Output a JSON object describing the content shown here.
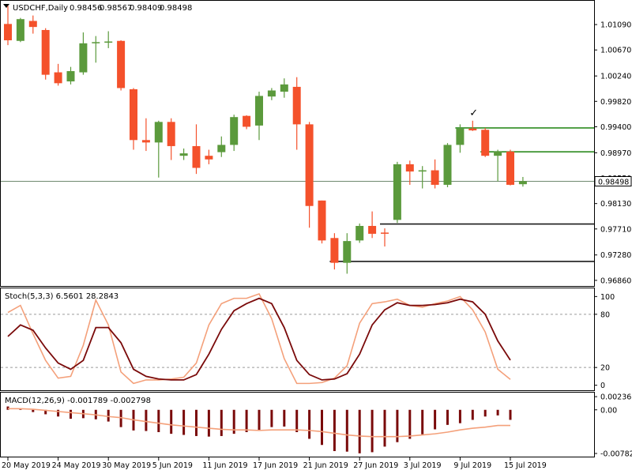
{
  "chart_data": [
    {
      "type": "candlestick",
      "title": "USDCHF,Daily",
      "symbol": "USDCHF",
      "timeframe": "Daily",
      "ohlc_header": [
        "0.98456",
        "0.98567",
        "0.98409",
        "0.98498"
      ],
      "current_price": 0.98498,
      "current_price_label": "0.98498",
      "y_ticks": [
        "1.01090",
        "1.00670",
        "1.00240",
        "0.99820",
        "0.99400",
        "0.98970",
        "0.98550",
        "0.98130",
        "0.97710",
        "0.97280",
        "0.96860"
      ],
      "ylim": [
        0.9678,
        1.0147
      ],
      "x_tick_labels": [
        {
          "label": "20 May 2019",
          "index": 0
        },
        {
          "label": "24 May 2019",
          "index": 4
        },
        {
          "label": "30 May 2019",
          "index": 8
        },
        {
          "label": "5 Jun 2019",
          "index": 12
        },
        {
          "label": "11 Jun 2019",
          "index": 16
        },
        {
          "label": "17 Jun 2019",
          "index": 20
        },
        {
          "label": "21 Jun 2019",
          "index": 24
        },
        {
          "label": "27 Jun 2019",
          "index": 28
        },
        {
          "label": "3 Jul 2019",
          "index": 32
        },
        {
          "label": "9 Jul 2019",
          "index": 36
        },
        {
          "label": "15 Jul 2019",
          "index": 40
        }
      ],
      "candles": [
        {
          "o": 1.011,
          "h": 1.014,
          "l": 1.0075,
          "c": 1.0083
        },
        {
          "o": 1.0082,
          "h": 1.012,
          "l": 1.008,
          "c": 1.0118
        },
        {
          "o": 1.0115,
          "h": 1.0124,
          "l": 1.0094,
          "c": 1.0105
        },
        {
          "o": 1.01,
          "h": 1.0103,
          "l": 1.0018,
          "c": 1.0026
        },
        {
          "o": 1.003,
          "h": 1.0044,
          "l": 1.0008,
          "c": 1.0012
        },
        {
          "o": 1.0015,
          "h": 1.0039,
          "l": 1.001,
          "c": 1.0032
        },
        {
          "o": 1.003,
          "h": 1.0096,
          "l": 1.0026,
          "c": 1.0078
        },
        {
          "o": 1.0078,
          "h": 1.009,
          "l": 1.0046,
          "c": 1.008
        },
        {
          "o": 1.008,
          "h": 1.0098,
          "l": 1.007,
          "c": 1.0081
        },
        {
          "o": 1.0082,
          "h": 1.0083,
          "l": 1.0,
          "c": 1.0004
        },
        {
          "o": 1.0002,
          "h": 1.0004,
          "l": 0.9902,
          "c": 0.9918
        },
        {
          "o": 0.9918,
          "h": 0.9954,
          "l": 0.99,
          "c": 0.9914
        },
        {
          "o": 0.9914,
          "h": 0.995,
          "l": 0.9856,
          "c": 0.9948
        },
        {
          "o": 0.9948,
          "h": 0.9954,
          "l": 0.9885,
          "c": 0.9908
        },
        {
          "o": 0.9892,
          "h": 0.9904,
          "l": 0.9885,
          "c": 0.9896
        },
        {
          "o": 0.9908,
          "h": 0.9944,
          "l": 0.9862,
          "c": 0.9872
        },
        {
          "o": 0.9892,
          "h": 0.9902,
          "l": 0.9878,
          "c": 0.9886
        },
        {
          "o": 0.9898,
          "h": 0.9924,
          "l": 0.989,
          "c": 0.991
        },
        {
          "o": 0.991,
          "h": 0.996,
          "l": 0.99,
          "c": 0.9956
        },
        {
          "o": 0.9958,
          "h": 0.9959,
          "l": 0.9936,
          "c": 0.994
        },
        {
          "o": 0.9942,
          "h": 0.9998,
          "l": 0.9918,
          "c": 0.9991
        },
        {
          "o": 0.999,
          "h": 1.0004,
          "l": 0.9984,
          "c": 1.0
        },
        {
          "o": 0.9998,
          "h": 1.002,
          "l": 0.9988,
          "c": 1.001
        },
        {
          "o": 1.0006,
          "h": 1.0022,
          "l": 0.9902,
          "c": 0.9944
        },
        {
          "o": 0.9944,
          "h": 0.9948,
          "l": 0.9773,
          "c": 0.9809
        },
        {
          "o": 0.9818,
          "h": 0.9818,
          "l": 0.9747,
          "c": 0.9752
        },
        {
          "o": 0.9756,
          "h": 0.9764,
          "l": 0.9704,
          "c": 0.9715
        },
        {
          "o": 0.9715,
          "h": 0.9764,
          "l": 0.9697,
          "c": 0.9751
        },
        {
          "o": 0.9752,
          "h": 0.978,
          "l": 0.9748,
          "c": 0.9776
        },
        {
          "o": 0.9776,
          "h": 0.98,
          "l": 0.9756,
          "c": 0.9763
        },
        {
          "o": 0.9765,
          "h": 0.9772,
          "l": 0.9742,
          "c": 0.9764
        },
        {
          "o": 0.9786,
          "h": 0.9882,
          "l": 0.9781,
          "c": 0.9878
        },
        {
          "o": 0.9878,
          "h": 0.9884,
          "l": 0.9844,
          "c": 0.9866
        },
        {
          "o": 0.9866,
          "h": 0.9875,
          "l": 0.9838,
          "c": 0.9868
        },
        {
          "o": 0.9868,
          "h": 0.9886,
          "l": 0.9838,
          "c": 0.9844
        },
        {
          "o": 0.9844,
          "h": 0.9913,
          "l": 0.984,
          "c": 0.991
        },
        {
          "o": 0.991,
          "h": 0.9944,
          "l": 0.9897,
          "c": 0.9937
        },
        {
          "o": 0.9937,
          "h": 0.995,
          "l": 0.9933,
          "c": 0.9934
        },
        {
          "o": 0.9935,
          "h": 0.9938,
          "l": 0.989,
          "c": 0.9892
        },
        {
          "o": 0.9892,
          "h": 0.9902,
          "l": 0.985,
          "c": 0.9899
        },
        {
          "o": 0.9899,
          "h": 0.9902,
          "l": 0.9843,
          "c": 0.9844
        },
        {
          "o": 0.9845,
          "h": 0.9857,
          "l": 0.9841,
          "c": 0.985
        }
      ],
      "horizontal_levels": [
        {
          "value": 0.99381,
          "color": "#2e8b20",
          "from_index": 36
        },
        {
          "value": 0.98985,
          "color": "#2e8b20",
          "from_index": 38
        },
        {
          "value": 0.97792,
          "color": "#1a1a1a",
          "from_index": 30
        },
        {
          "value": 0.97173,
          "color": "#1a1a1a",
          "from_index": 26
        }
      ],
      "annotations": [
        {
          "text": "✓",
          "index": 37,
          "price": 0.99575
        }
      ],
      "colors": {
        "bull": "#5b9a3c",
        "bear": "#f4512b",
        "current_line": "#6f8a6f"
      }
    },
    {
      "type": "line",
      "title": "Stoch(5,3,3) 6.5601 28.2843",
      "y_ticks": [
        "100",
        "80",
        "20",
        "0"
      ],
      "ylim": [
        -3,
        103
      ],
      "levels": [
        80,
        20
      ],
      "series": [
        {
          "color": "#f4a07a",
          "values": [
            82,
            90,
            58,
            28,
            8,
            10,
            45,
            96,
            68,
            15,
            2,
            6,
            6,
            7,
            9,
            25,
            68,
            92,
            98,
            98,
            103,
            75,
            30,
            2,
            2,
            3,
            8,
            22,
            70,
            92,
            94,
            97,
            90,
            88,
            92,
            95,
            100,
            85,
            60,
            18,
            6.56
          ]
        },
        {
          "color": "#7a0a0a",
          "values": [
            55,
            68,
            62,
            42,
            25,
            18,
            28,
            65,
            65,
            48,
            18,
            10,
            7,
            6,
            6,
            12,
            35,
            63,
            84,
            92,
            98,
            92,
            65,
            28,
            12,
            6,
            7,
            13,
            35,
            68,
            85,
            93,
            90,
            90,
            91,
            93,
            97,
            94,
            80,
            50,
            28.28
          ]
        }
      ]
    },
    {
      "type": "bar",
      "title": "MACD(12,26,9) -0.001789 -0.002798",
      "y_ticks": [
        "0.00236",
        "0.00",
        "-0.007828"
      ],
      "ylim": [
        -0.00825,
        0.0028
      ],
      "histogram": [
        0.0006,
        0.0002,
        -0.0004,
        -0.0008,
        -0.0012,
        -0.0016,
        -0.0015,
        -0.0017,
        -0.0021,
        -0.0031,
        -0.0037,
        -0.0038,
        -0.004,
        -0.0043,
        -0.0045,
        -0.0047,
        -0.0048,
        -0.0047,
        -0.0043,
        -0.004,
        -0.0036,
        -0.0031,
        -0.003,
        -0.004,
        -0.0052,
        -0.0063,
        -0.0074,
        -0.0075,
        -0.0078,
        -0.0076,
        -0.0066,
        -0.0058,
        -0.0052,
        -0.0044,
        -0.0035,
        -0.0027,
        -0.0024,
        -0.0018,
        -0.0012,
        -0.001,
        -0.0018
      ],
      "signal": [
        0.0002,
        0.0002,
        0.0001,
        -0.0001,
        -0.0003,
        -0.0005,
        -0.0007,
        -0.0009,
        -0.0012,
        -0.0014,
        -0.0018,
        -0.0021,
        -0.0024,
        -0.0027,
        -0.0029,
        -0.0031,
        -0.0033,
        -0.0035,
        -0.0036,
        -0.0036,
        -0.0037,
        -0.0036,
        -0.0036,
        -0.0036,
        -0.0037,
        -0.0039,
        -0.0042,
        -0.0045,
        -0.0047,
        -0.0048,
        -0.0048,
        -0.0048,
        -0.0047,
        -0.0045,
        -0.0043,
        -0.004,
        -0.0036,
        -0.0033,
        -0.0031,
        -0.0028,
        -0.0028
      ],
      "colors": {
        "histogram": "#7a0a0a",
        "signal": "#f4a07a"
      }
    }
  ]
}
